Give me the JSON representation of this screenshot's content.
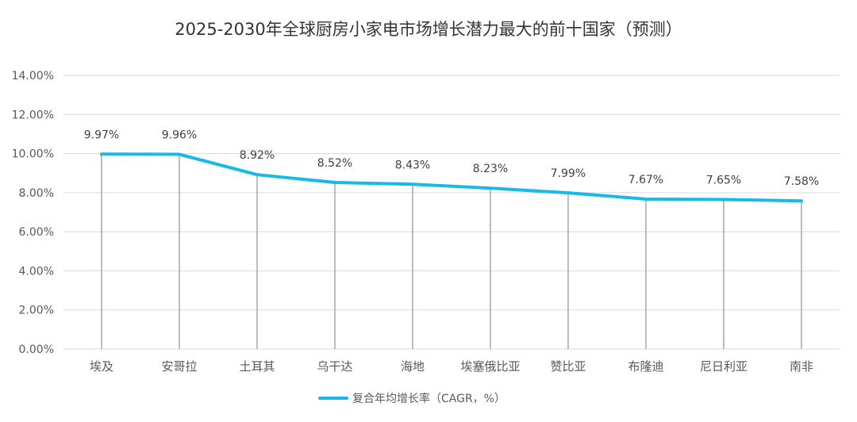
{
  "chart_data": {
    "type": "line",
    "title": "2025-2030年全球厨房小家电市场增长潜力最大的前十国家（预测）",
    "categories": [
      "埃及",
      "安哥拉",
      "土耳其",
      "乌干达",
      "海地",
      "埃塞俄比亚",
      "赞比亚",
      "布隆迪",
      "尼日利亚",
      "南非"
    ],
    "series": [
      {
        "name": "复合年均增长率（CAGR，%）",
        "values": [
          9.97,
          9.96,
          8.92,
          8.52,
          8.43,
          8.23,
          7.99,
          7.67,
          7.65,
          7.58
        ],
        "labels": [
          "9.97%",
          "9.96%",
          "8.92%",
          "8.52%",
          "8.43%",
          "8.23%",
          "7.99%",
          "7.67%",
          "7.65%",
          "7.58%"
        ],
        "color": "#1AB8E8"
      }
    ],
    "ylim": [
      0,
      14
    ],
    "yticks": [
      0,
      2,
      4,
      6,
      8,
      10,
      12,
      14
    ],
    "ytick_labels": [
      "0.00%",
      "2.00%",
      "4.00%",
      "6.00%",
      "8.00%",
      "10.00%",
      "12.00%",
      "14.00%"
    ],
    "grid": true,
    "drop_lines": true,
    "legend": "bottom-center",
    "gridline_color": "#D9D9D9",
    "dropline_color": "#A6A6A6"
  }
}
